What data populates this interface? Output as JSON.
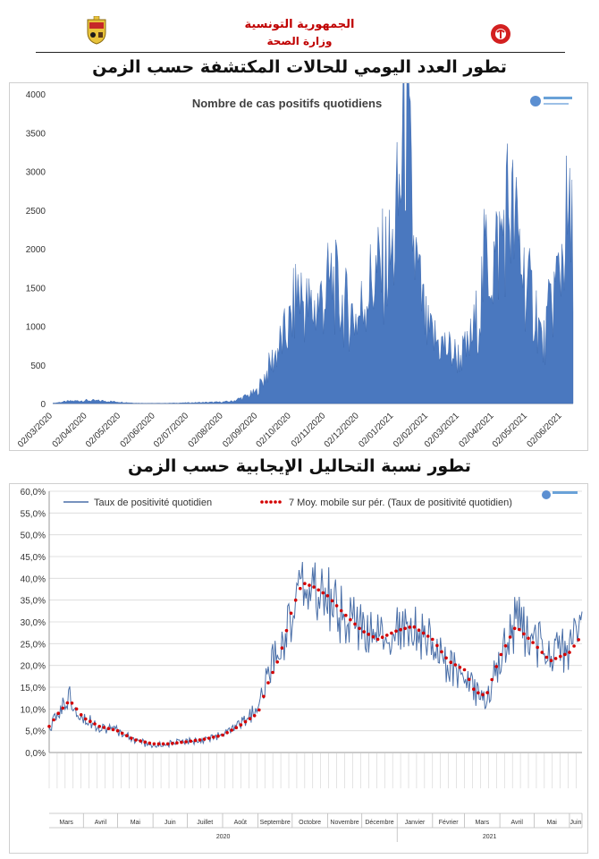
{
  "header": {
    "line1": "الجمهورية التونسية",
    "line2": "وزارة الصحة",
    "left_emblem_icon": "tunisia-coat-of-arms-icon",
    "right_logo_icon": "ministry-health-logo-icon"
  },
  "chart1_title": "تطور العدد اليومي للحالات المكتشفة حسب الزمن",
  "chart2_title": "تطور نسبة التحاليل الإيجابية حسب الزمن",
  "colors": {
    "area_fill": "#4a78bf",
    "line": "#4a6fa8",
    "moving_avg": "#d40000",
    "title_red": "#c00000"
  },
  "chart_data": [
    {
      "type": "area",
      "title": "Nombre de cas positifs quotidiens",
      "xlabel": "",
      "ylabel": "",
      "ylim": [
        0,
        4000
      ],
      "yticks": [
        "0",
        "500",
        "1000",
        "1500",
        "2000",
        "2500",
        "3000",
        "3500",
        "4000"
      ],
      "xticks": [
        "02/03/2020",
        "02/04/2020",
        "02/05/2020",
        "02/06/2020",
        "02/07/2020",
        "02/08/2020",
        "02/09/2020",
        "02/10/2020",
        "02/11/2020",
        "02/12/2020",
        "02/01/2021",
        "02/02/2021",
        "02/03/2021",
        "02/04/2021",
        "02/05/2021",
        "02/06/2021"
      ],
      "grid": false,
      "x": [
        "2020-03-02",
        "2020-03-16",
        "2020-04-01",
        "2020-04-16",
        "2020-05-01",
        "2020-05-16",
        "2020-06-01",
        "2020-06-16",
        "2020-07-01",
        "2020-07-16",
        "2020-08-01",
        "2020-08-10",
        "2020-08-20",
        "2020-09-01",
        "2020-09-10",
        "2020-09-20",
        "2020-10-01",
        "2020-10-08",
        "2020-10-15",
        "2020-10-22",
        "2020-11-01",
        "2020-11-08",
        "2020-11-15",
        "2020-11-22",
        "2020-12-01",
        "2020-12-10",
        "2020-12-20",
        "2021-01-01",
        "2021-01-08",
        "2021-01-12",
        "2021-01-16",
        "2021-01-20",
        "2021-01-25",
        "2021-02-01",
        "2021-02-10",
        "2021-02-20",
        "2021-03-01",
        "2021-03-10",
        "2021-03-20",
        "2021-03-25",
        "2021-04-01",
        "2021-04-08",
        "2021-04-15",
        "2021-04-20",
        "2021-04-25",
        "2021-05-01",
        "2021-05-10",
        "2021-05-16",
        "2021-05-22",
        "2021-06-01",
        "2021-06-05",
        "2021-06-09",
        "2021-06-12"
      ],
      "values": [
        5,
        30,
        40,
        35,
        20,
        5,
        3,
        5,
        10,
        15,
        20,
        30,
        80,
        150,
        400,
        700,
        1000,
        1500,
        1250,
        1200,
        1400,
        1600,
        1300,
        1200,
        1100,
        1500,
        1700,
        1900,
        2800,
        3900,
        3100,
        2000,
        1500,
        900,
        800,
        700,
        600,
        700,
        1200,
        1900,
        1800,
        2100,
        2600,
        2300,
        2000,
        1500,
        1200,
        700,
        1200,
        1800,
        2300,
        2200,
        2100
      ]
    },
    {
      "type": "line",
      "title": "",
      "ylim": [
        0,
        60
      ],
      "yticks": [
        "0,0%",
        "5,0%",
        "10,0%",
        "15,0%",
        "20,0%",
        "25,0%",
        "30,0%",
        "35,0%",
        "40,0%",
        "45,0%",
        "50,0%",
        "55,0%",
        "60,0%"
      ],
      "grid": true,
      "legend": "top",
      "months": [
        "Mars",
        "Avril",
        "Mai",
        "Juin",
        "Juillet",
        "Août",
        "Septembre",
        "Octobre",
        "Novembre",
        "Décembre",
        "Janvier",
        "Février",
        "Mars",
        "Avril",
        "Mai",
        "Juin"
      ],
      "years": [
        "2020",
        "2021"
      ],
      "x": [
        "2020-03-02",
        "2020-03-10",
        "2020-03-20",
        "2020-04-01",
        "2020-04-15",
        "2020-05-01",
        "2020-05-15",
        "2020-06-01",
        "2020-06-15",
        "2020-07-01",
        "2020-07-15",
        "2020-08-01",
        "2020-08-15",
        "2020-09-01",
        "2020-09-10",
        "2020-09-20",
        "2020-10-01",
        "2020-10-10",
        "2020-10-20",
        "2020-11-01",
        "2020-11-15",
        "2020-12-01",
        "2020-12-15",
        "2021-01-01",
        "2021-01-15",
        "2021-02-01",
        "2021-02-15",
        "2021-03-01",
        "2021-03-10",
        "2021-03-20",
        "2021-04-01",
        "2021-04-15",
        "2021-05-01",
        "2021-05-15",
        "2021-06-01",
        "2021-06-12"
      ],
      "series": [
        {
          "name": "Taux de positivité quotidien",
          "values": [
            5,
            9,
            13,
            8,
            6,
            5,
            3,
            1.5,
            2,
            2.5,
            3,
            4,
            6,
            10,
            18,
            24,
            32,
            38,
            37,
            36,
            31,
            28,
            26,
            28,
            29,
            25,
            20,
            18,
            14,
            12,
            22,
            30,
            26,
            22,
            24,
            29
          ]
        },
        {
          "name": "7 Moy. mobile sur pér. (Taux de positivité quotidien)",
          "values": [
            6,
            9,
            12,
            8,
            6,
            5,
            3,
            2,
            2,
            2.5,
            3,
            4,
            6,
            9,
            16,
            22,
            33,
            39,
            38,
            36,
            32,
            28,
            26,
            28,
            29,
            26,
            21,
            19,
            14,
            13,
            22,
            29,
            25,
            21,
            23,
            27
          ]
        }
      ]
    }
  ]
}
